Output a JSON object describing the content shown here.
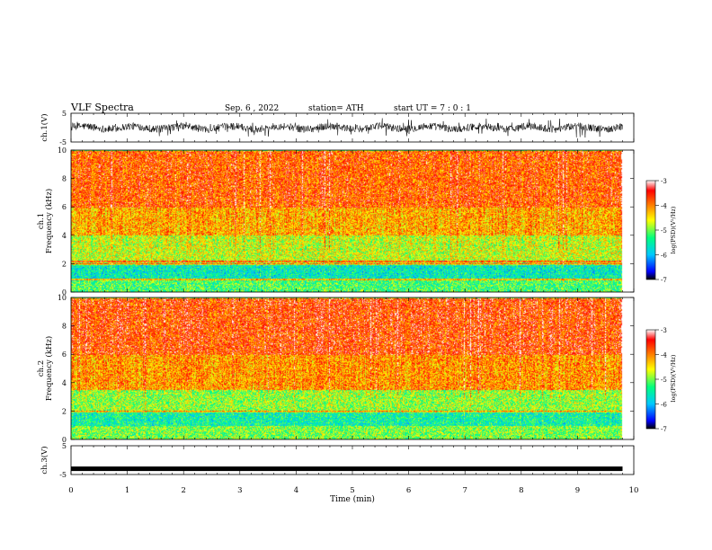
{
  "header": {
    "title": "VLF Spectra",
    "date": "Sep. 6 , 2022",
    "station": "station= ATH",
    "start": "start UT = 7 : 0 : 1"
  },
  "colors": {
    "colormap": [
      "#000000",
      "#0000ff",
      "#00c8ff",
      "#00ff80",
      "#ffff00",
      "#ff8000",
      "#ff0000",
      "#ffffff"
    ],
    "trace": "#000000"
  },
  "chart_data": [
    {
      "type": "line",
      "name": "ch1-waveform",
      "ylabel": "ch.1(V)",
      "ylim": [
        -5,
        5
      ],
      "yticks": [
        "5",
        "-5"
      ],
      "xlim": [
        0,
        10
      ],
      "x_end": 9.8,
      "amplitude_band": [
        -2,
        2
      ]
    },
    {
      "type": "heatmap",
      "name": "ch1-spectrogram",
      "ylabel": "ch.1\nFrequency (kHz)",
      "ylim": [
        0,
        10
      ],
      "yticks": [
        "0",
        "2",
        "4",
        "6",
        "8",
        "10"
      ],
      "xlim": [
        0,
        10
      ],
      "x_end": 9.8,
      "colorbar": {
        "label": "log(PSD)(V²/Hz)",
        "range": [
          -7,
          -3
        ],
        "ticks": [
          "-3",
          "-4",
          "-5",
          "-6",
          "-7"
        ]
      },
      "band_levels": [
        {
          "f": [
            0,
            1.0
          ],
          "level": -5.2
        },
        {
          "f": [
            1.0,
            2.0
          ],
          "level": -5.6
        },
        {
          "f": [
            2.0,
            4.0
          ],
          "level": -4.7
        },
        {
          "f": [
            4.0,
            6.0
          ],
          "level": -4.2
        },
        {
          "f": [
            6.0,
            10.0
          ],
          "level": -3.8
        }
      ],
      "strong_lines_khz": [
        0.9,
        2.0,
        2.2
      ]
    },
    {
      "type": "heatmap",
      "name": "ch2-spectrogram",
      "ylabel": "ch.2\nFrequency (kHz)",
      "ylim": [
        0,
        10
      ],
      "yticks": [
        "0",
        "2",
        "4",
        "6",
        "8",
        "10"
      ],
      "xlim": [
        0,
        10
      ],
      "x_end": 9.8,
      "colorbar": {
        "label": "log(PSD)(V²/Hz)",
        "range": [
          -7,
          -3
        ],
        "ticks": [
          "-3",
          "-4",
          "-5",
          "-6",
          "-7"
        ]
      },
      "band_levels": [
        {
          "f": [
            0,
            1.0
          ],
          "level": -5.0
        },
        {
          "f": [
            1.0,
            2.0
          ],
          "level": -5.5
        },
        {
          "f": [
            2.0,
            3.5
          ],
          "level": -4.9
        },
        {
          "f": [
            3.5,
            6.0
          ],
          "level": -4.1
        },
        {
          "f": [
            6.0,
            10.0
          ],
          "level": -3.7
        }
      ],
      "strong_lines_khz": [
        2.0
      ]
    },
    {
      "type": "line",
      "name": "ch3-waveform",
      "ylabel": "ch.3(V)",
      "ylim": [
        -5,
        5
      ],
      "yticks": [
        "5",
        "-5"
      ],
      "xlim": [
        0,
        10
      ],
      "x_end": 9.8,
      "level": -3.0
    }
  ],
  "xaxis": {
    "label": "Time (min)",
    "ticks": [
      "0",
      "1",
      "2",
      "3",
      "4",
      "5",
      "6",
      "7",
      "8",
      "9",
      "10"
    ]
  }
}
